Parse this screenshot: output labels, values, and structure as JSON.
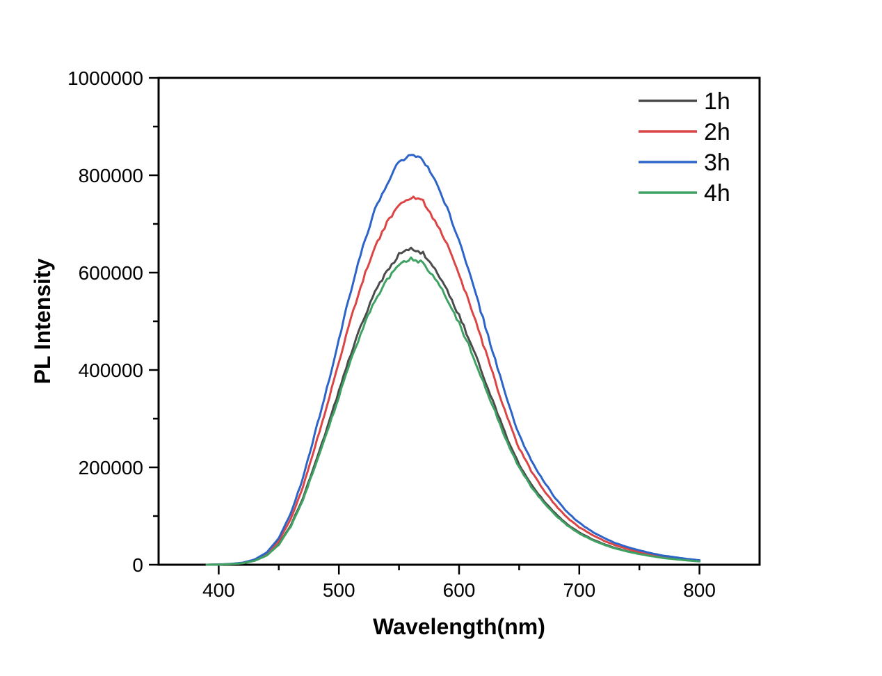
{
  "chart_data": {
    "type": "line",
    "title": "",
    "xlabel": "Wavelength(nm)",
    "ylabel": "PL Intensity",
    "xlim": [
      350,
      850
    ],
    "ylim": [
      0,
      1000000
    ],
    "x_major_ticks": [
      400,
      500,
      600,
      700,
      800
    ],
    "x_minor_ticks": [
      450,
      550,
      650,
      750
    ],
    "y_major_ticks": [
      0,
      200000,
      400000,
      600000,
      800000,
      1000000
    ],
    "y_minor_ticks": [
      100000,
      300000,
      500000,
      700000,
      900000
    ],
    "grid": false,
    "legend_position": "top-right-inside",
    "axis_color": "#000000",
    "background_color": "#ffffff",
    "x_nm": [
      390,
      400,
      410,
      420,
      430,
      440,
      450,
      460,
      470,
      480,
      490,
      500,
      510,
      520,
      530,
      540,
      550,
      560,
      570,
      580,
      590,
      600,
      610,
      620,
      630,
      640,
      650,
      660,
      670,
      680,
      690,
      700,
      710,
      720,
      730,
      740,
      750,
      760,
      770,
      780,
      790,
      800
    ],
    "series": [
      {
        "name": "1h",
        "color": "#4b4b4b",
        "peak_nm": 557,
        "peak_intensity": 648000,
        "values": [
          0,
          300,
          1300,
          3200,
          8400,
          19400,
          42100,
          81000,
          136100,
          207400,
          278600,
          356400,
          434200,
          502200,
          560500,
          602600,
          637000,
          648000,
          641000,
          605900,
          563800,
          511900,
          453600,
          388800,
          324000,
          259200,
          205400,
          165200,
          132800,
          105600,
          82900,
          66100,
          53100,
          42800,
          34300,
          27900,
          22700,
          18100,
          14300,
          11700,
          9100,
          7100
        ]
      },
      {
        "name": "2h",
        "color": "#dc4545",
        "peak_nm": 556,
        "peak_intensity": 755000,
        "values": [
          0,
          380,
          1500,
          3800,
          9800,
          22700,
          49100,
          94400,
          158600,
          241600,
          324700,
          415300,
          505900,
          585100,
          653100,
          702200,
          742000,
          755000,
          747000,
          706000,
          656900,
          596500,
          528500,
          453000,
          377500,
          302000,
          239300,
          192500,
          154800,
          123100,
          96600,
          77000,
          61900,
          49800,
          40000,
          32500,
          26400,
          21100,
          16600,
          13600,
          10600,
          8300
        ]
      },
      {
        "name": "3h",
        "color": "#2d64c8",
        "peak_nm": 557,
        "peak_intensity": 842000,
        "values": [
          0,
          400,
          1700,
          4200,
          10900,
          25300,
          54700,
          105300,
          176800,
          269400,
          362100,
          463100,
          564100,
          652600,
          728300,
          783100,
          828000,
          842000,
          833000,
          787300,
          732500,
          665200,
          589400,
          505200,
          421000,
          336800,
          266900,
          214700,
          172600,
          137200,
          107800,
          85900,
          69000,
          55600,
          44600,
          36200,
          29500,
          23600,
          18500,
          15200,
          11800,
          9300
        ]
      },
      {
        "name": "4h",
        "color": "#3fa263",
        "peak_nm": 555,
        "peak_intensity": 628000,
        "values": [
          0,
          310,
          1260,
          3100,
          8200,
          18800,
          40800,
          78500,
          131900,
          201000,
          270000,
          345400,
          420800,
          486700,
          543200,
          584000,
          618000,
          628000,
          620000,
          587200,
          546400,
          496100,
          439600,
          376800,
          314000,
          251200,
          199100,
          160100,
          128700,
          102400,
          80400,
          64100,
          51500,
          41400,
          33300,
          27000,
          22000,
          17600,
          13800,
          11300,
          8800,
          6900
        ]
      }
    ]
  }
}
